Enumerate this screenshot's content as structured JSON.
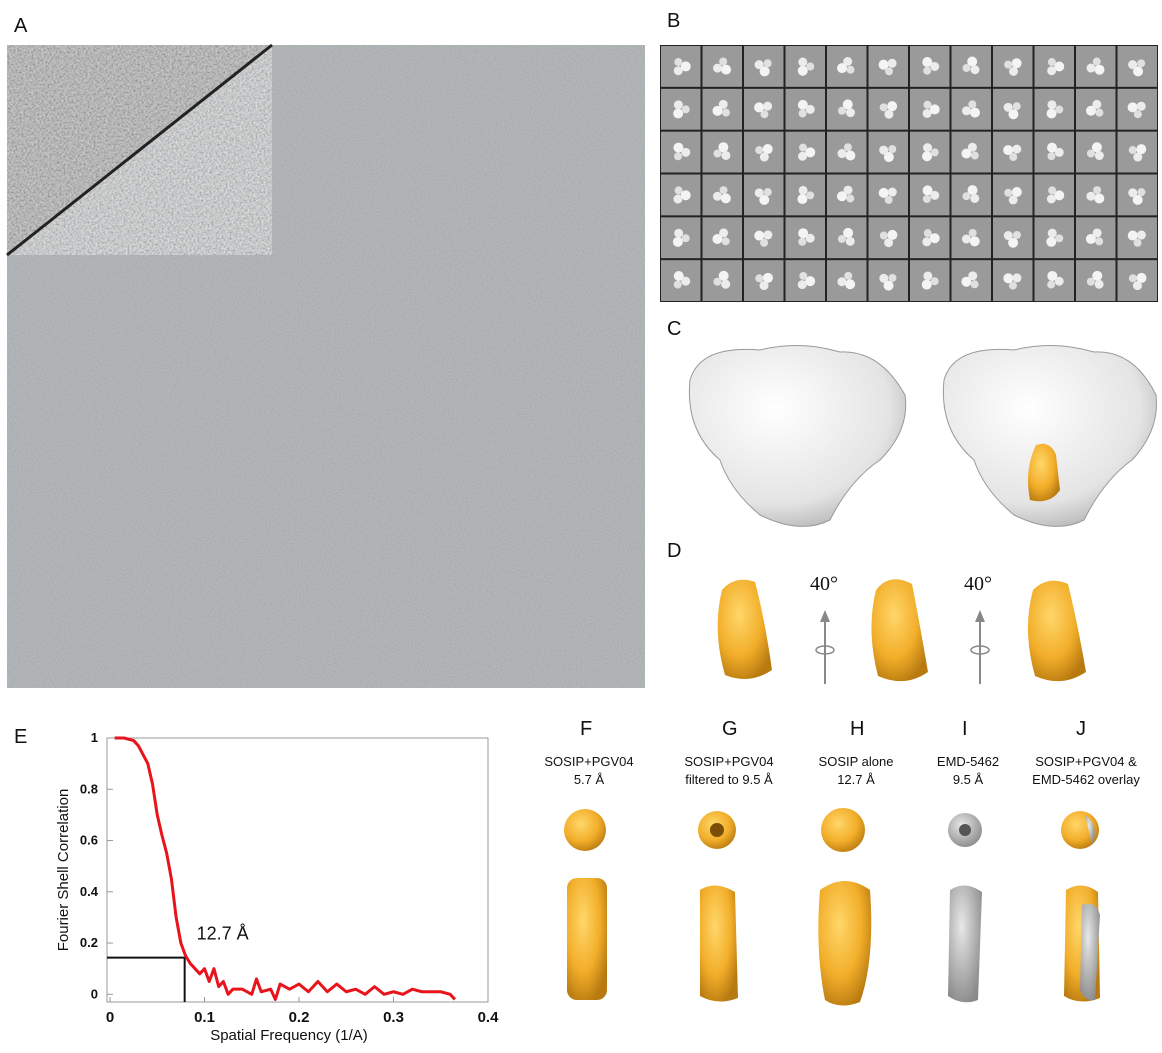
{
  "panel_labels": [
    "A",
    "B",
    "C",
    "D",
    "E",
    "F",
    "G",
    "H",
    "I",
    "J"
  ],
  "rotations": [
    "40°",
    "40°"
  ],
  "captions": [
    [
      "SOSIP+PGV04",
      "5.7 Å"
    ],
    [
      "SOSIP+PGV04",
      "filtered to 9.5 Å"
    ],
    [
      "SOSIP alone",
      "12.7 Å"
    ],
    [
      "EMD-5462",
      "9.5 Å"
    ],
    [
      "SOSIP+PGV04 &",
      "EMD-5462 overlay"
    ]
  ],
  "chart_data": {
    "type": "line",
    "ylabel": "Fourier Shell Correlation",
    "xlabel": "Spatial Frequency (1/A)",
    "annotation": "12.7 Å",
    "color": "#e8141c",
    "x": [
      0.005,
      0.015,
      0.025,
      0.03,
      0.04,
      0.045,
      0.05,
      0.055,
      0.06,
      0.065,
      0.07,
      0.075,
      0.08,
      0.085,
      0.09,
      0.095,
      0.1,
      0.105,
      0.11,
      0.115,
      0.12,
      0.125,
      0.13,
      0.14,
      0.15,
      0.155,
      0.16,
      0.17,
      0.175,
      0.18,
      0.19,
      0.2,
      0.21,
      0.22,
      0.23,
      0.24,
      0.25,
      0.26,
      0.27,
      0.28,
      0.29,
      0.3,
      0.31,
      0.32,
      0.33,
      0.34,
      0.35,
      0.36,
      0.365
    ],
    "values": [
      1.0,
      1.0,
      0.99,
      0.97,
      0.9,
      0.82,
      0.7,
      0.62,
      0.55,
      0.45,
      0.3,
      0.2,
      0.15,
      0.12,
      0.1,
      0.08,
      0.1,
      0.05,
      0.1,
      0.03,
      0.05,
      0.0,
      0.02,
      0.02,
      0.0,
      0.06,
      0.01,
      0.02,
      -0.02,
      0.04,
      0.02,
      0.04,
      0.01,
      0.05,
      0.01,
      0.04,
      0.01,
      0.02,
      0.0,
      0.03,
      0.0,
      0.01,
      0.0,
      0.02,
      0.01,
      0.01,
      0.01,
      0.0,
      -0.02
    ],
    "threshold": {
      "x": 0.079,
      "y": 0.143
    },
    "xlim": [
      0,
      0.4
    ],
    "ylim": [
      -0.03,
      1.0
    ],
    "xticks": [
      0,
      0.1,
      0.2,
      0.3,
      0.4
    ],
    "yticks": [
      0,
      0.2,
      0.4,
      0.6,
      0.8,
      1
    ]
  }
}
